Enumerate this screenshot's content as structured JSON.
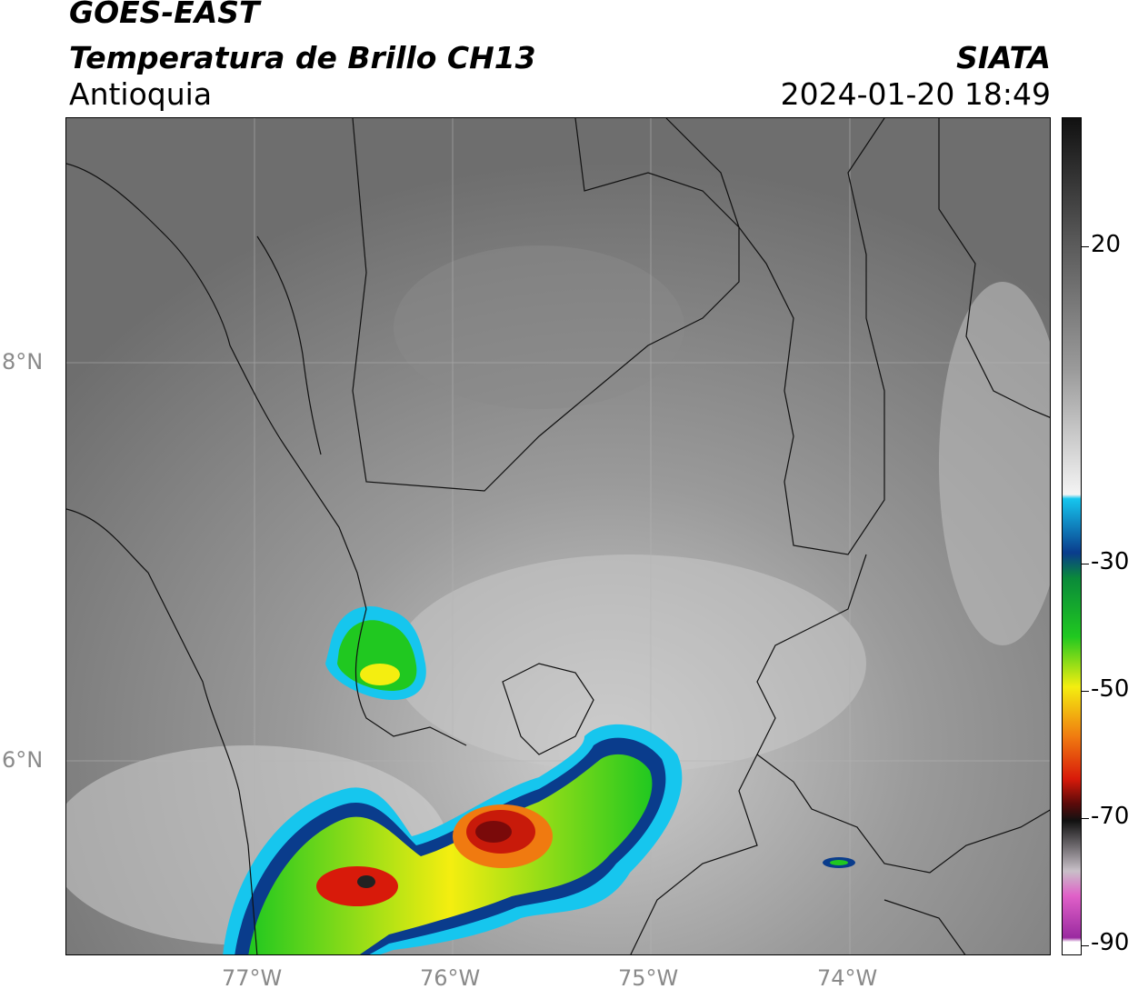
{
  "header": {
    "satellite": "GOES-EAST",
    "product": "Temperatura de Brillo CH13",
    "region": "Antioquia",
    "org": "SIATA",
    "datetime": "2024-01-20 18:49"
  },
  "axes": {
    "lat_labels": [
      "8°N",
      "6°N"
    ],
    "lon_labels": [
      "77°W",
      "76°W",
      "75°W",
      "74°W"
    ]
  },
  "colorbar": {
    "labels": [
      "20",
      "-30",
      "-50",
      "-70",
      "-90"
    ],
    "colors": {
      "warm_gray": "#7a7a7a",
      "cyan": "#16c6ee",
      "blue": "#0a3c8c",
      "green": "#20c820",
      "yellow": "#f4ee10",
      "red": "#d81a0a",
      "black": "#111111",
      "magenta": "#e060c8",
      "purple": "#9a2aa0"
    }
  }
}
